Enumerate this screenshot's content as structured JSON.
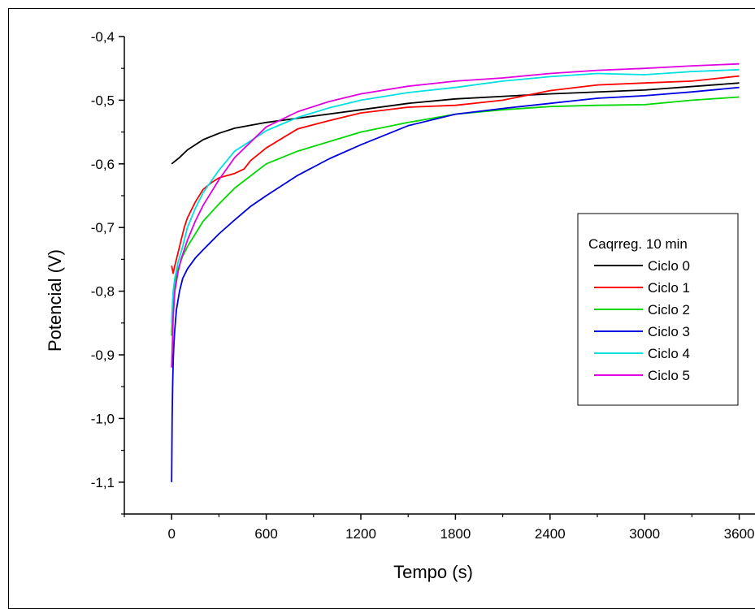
{
  "chart_data": {
    "type": "line",
    "title": "",
    "xlabel": "Tempo (s)",
    "ylabel": "Potencial (V)",
    "xlim": [
      -300,
      3700
    ],
    "ylim": [
      -1.15,
      -0.4
    ],
    "x_ticks": [
      0,
      600,
      1200,
      1800,
      2400,
      3000,
      3600
    ],
    "x_tick_labels": [
      "0",
      "600",
      "1200",
      "1800",
      "2400",
      "3000",
      "3600"
    ],
    "y_ticks": [
      -1.1,
      -1.0,
      -0.9,
      -0.8,
      -0.7,
      -0.6,
      -0.5,
      -0.4
    ],
    "y_tick_labels": [
      "-1,1",
      "-1,0",
      "-0,9",
      "-0,8",
      "-0,7",
      "-0,6",
      "-0,5",
      "-0,4"
    ],
    "grid": false,
    "legend": {
      "title": "Caqrreg. 10 min",
      "position": "right"
    },
    "series": [
      {
        "name": "Ciclo 0",
        "color": "#000000",
        "x": [
          0,
          50,
          100,
          200,
          300,
          400,
          600,
          900,
          1200,
          1500,
          1800,
          2400,
          3000,
          3600
        ],
        "y": [
          -0.6,
          -0.59,
          -0.578,
          -0.562,
          -0.552,
          -0.544,
          -0.535,
          -0.525,
          -0.515,
          -0.505,
          -0.498,
          -0.49,
          -0.484,
          -0.473
        ]
      },
      {
        "name": "Ciclo 1",
        "color": "#ff0000",
        "x": [
          0,
          10,
          20,
          40,
          60,
          80,
          100,
          150,
          200,
          250,
          300,
          400,
          460,
          500,
          600,
          700,
          800,
          1000,
          1200,
          1500,
          1800,
          2100,
          2400,
          2700,
          3000,
          3300,
          3600
        ],
        "y": [
          -0.76,
          -0.772,
          -0.76,
          -0.74,
          -0.72,
          -0.7,
          -0.685,
          -0.66,
          -0.64,
          -0.63,
          -0.622,
          -0.615,
          -0.608,
          -0.595,
          -0.575,
          -0.56,
          -0.545,
          -0.532,
          -0.52,
          -0.511,
          -0.508,
          -0.5,
          -0.485,
          -0.476,
          -0.473,
          -0.47,
          -0.462
        ]
      },
      {
        "name": "Ciclo 2",
        "color": "#00d800",
        "x": [
          0,
          5,
          10,
          20,
          40,
          70,
          100,
          150,
          200,
          300,
          400,
          600,
          800,
          1000,
          1200,
          1500,
          1800,
          2100,
          2400,
          2700,
          3000,
          3300,
          3600
        ],
        "y": [
          -0.87,
          -0.83,
          -0.81,
          -0.79,
          -0.765,
          -0.745,
          -0.73,
          -0.71,
          -0.69,
          -0.663,
          -0.638,
          -0.6,
          -0.58,
          -0.565,
          -0.55,
          -0.535,
          -0.522,
          -0.515,
          -0.51,
          -0.508,
          -0.507,
          -0.5,
          -0.495
        ]
      },
      {
        "name": "Ciclo 3",
        "color": "#0000e0",
        "x": [
          0,
          3,
          6,
          10,
          15,
          20,
          30,
          50,
          70,
          100,
          150,
          200,
          300,
          400,
          500,
          600,
          800,
          1000,
          1200,
          1500,
          1800,
          2100,
          2400,
          2700,
          3000,
          3300,
          3600
        ],
        "y": [
          -1.1,
          -1.0,
          -0.95,
          -0.91,
          -0.88,
          -0.86,
          -0.83,
          -0.8,
          -0.78,
          -0.765,
          -0.748,
          -0.735,
          -0.71,
          -0.688,
          -0.667,
          -0.65,
          -0.618,
          -0.592,
          -0.57,
          -0.54,
          -0.522,
          -0.513,
          -0.505,
          -0.497,
          -0.493,
          -0.487,
          -0.48
        ]
      },
      {
        "name": "Ciclo 4",
        "color": "#00e0e0",
        "x": [
          0,
          5,
          10,
          20,
          40,
          70,
          100,
          150,
          200,
          300,
          400,
          600,
          800,
          1000,
          1200,
          1500,
          1800,
          2100,
          2400,
          2700,
          3000,
          3300,
          3600
        ],
        "y": [
          -0.85,
          -0.82,
          -0.8,
          -0.78,
          -0.755,
          -0.73,
          -0.7,
          -0.67,
          -0.645,
          -0.61,
          -0.58,
          -0.548,
          -0.527,
          -0.512,
          -0.5,
          -0.488,
          -0.48,
          -0.47,
          -0.463,
          -0.458,
          -0.46,
          -0.455,
          -0.452
        ]
      },
      {
        "name": "Ciclo 5",
        "color": "#e000e0",
        "x": [
          0,
          5,
          10,
          20,
          40,
          60,
          100,
          150,
          200,
          300,
          400,
          600,
          800,
          1000,
          1200,
          1500,
          1800,
          2100,
          2400,
          2700,
          3000,
          3300,
          3600
        ],
        "y": [
          -0.92,
          -0.88,
          -0.84,
          -0.8,
          -0.77,
          -0.75,
          -0.72,
          -0.69,
          -0.665,
          -0.625,
          -0.59,
          -0.542,
          -0.518,
          -0.502,
          -0.49,
          -0.478,
          -0.47,
          -0.465,
          -0.458,
          -0.453,
          -0.45,
          -0.446,
          -0.443
        ]
      }
    ]
  }
}
